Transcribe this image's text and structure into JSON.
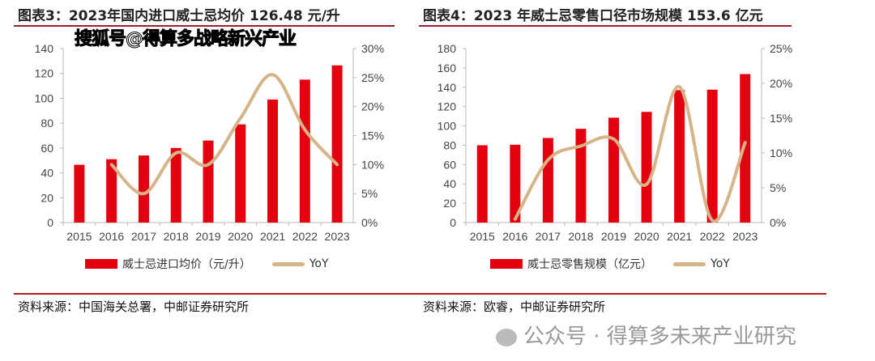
{
  "chart_data": [
    {
      "type": "bar",
      "title": "图表3：2023年国内进口威士忌均价 126.48 元/升",
      "categories": [
        "2015",
        "2016",
        "2017",
        "2018",
        "2019",
        "2020",
        "2021",
        "2022",
        "2023"
      ],
      "series": [
        {
          "name": "威士忌进口均价（元/升）",
          "axis": "left",
          "type": "bar",
          "values": [
            46.5,
            51,
            54,
            60,
            66,
            79,
            99,
            115,
            126.48
          ]
        },
        {
          "name": "YoY",
          "axis": "right",
          "type": "line",
          "values": [
            null,
            10,
            5,
            12,
            10,
            18,
            25.5,
            16,
            10
          ]
        }
      ],
      "ylim": [
        0,
        140
      ],
      "yticks": [
        "0",
        "20",
        "40",
        "60",
        "80",
        "100",
        "120",
        "140"
      ],
      "y2lim": [
        0,
        30
      ],
      "y2ticks": [
        "0%",
        "5%",
        "10%",
        "15%",
        "20%",
        "25%",
        "30%"
      ],
      "source": "资料来源：中国海关总署，中邮证券研究所"
    },
    {
      "type": "bar",
      "title": "图表4：2023 年威士忌零售口径市场规模 153.6 亿元",
      "categories": [
        "2015",
        "2016",
        "2017",
        "2018",
        "2019",
        "2020",
        "2021",
        "2022",
        "2023"
      ],
      "series": [
        {
          "name": "威士忌零售规模（亿元）",
          "axis": "left",
          "type": "bar",
          "values": [
            80,
            80.5,
            87.5,
            97,
            108.5,
            114.5,
            137,
            137.5,
            153.6
          ]
        },
        {
          "name": "YoY",
          "axis": "right",
          "type": "line",
          "values": [
            null,
            0.5,
            9,
            11,
            12,
            5.5,
            19.5,
            0.3,
            11.5
          ]
        }
      ],
      "ylim": [
        0,
        180
      ],
      "yticks": [
        "0",
        "20",
        "40",
        "60",
        "80",
        "100",
        "120",
        "140",
        "160",
        "180"
      ],
      "y2lim": [
        0,
        25
      ],
      "y2ticks": [
        "0%",
        "5%",
        "10%",
        "15%",
        "20%",
        "25%"
      ],
      "source": "资料来源：欧睿，中邮证券研究所"
    }
  ],
  "watermark_top": "搜狐号@得算多战略新兴产业",
  "watermark_bottom": "公众号 · 得算多未来产业研究",
  "colors": {
    "bar": "#e3000f",
    "line": "#d6b487"
  }
}
